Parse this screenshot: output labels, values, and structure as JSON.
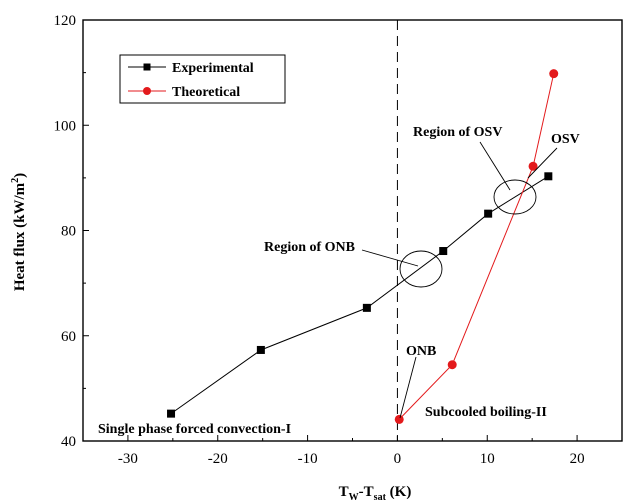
{
  "chart_data": {
    "type": "line",
    "xlabel": "T",
    "xlabel_sub1": "W",
    "xlabel_mid": "-T",
    "xlabel_sub2": "sat",
    "xlabel_unit": " (K)",
    "ylabel": "Heat flux (kW/m",
    "ylabel_sup": "2",
    "ylabel_end": ")",
    "xlim": [
      -35,
      25
    ],
    "ylim": [
      40,
      120
    ],
    "xticks": [
      -30,
      -20,
      -10,
      0,
      10,
      20
    ],
    "yticks": [
      40,
      60,
      80,
      100,
      120
    ],
    "grid": false,
    "legend_position": "top-left",
    "series": [
      {
        "name": "Experimental",
        "marker": "square",
        "color": "#000000",
        "x": [
          -25.2,
          -15.2,
          -3.4,
          5.1,
          10.1,
          16.8
        ],
        "y": [
          45.2,
          57.3,
          65.3,
          76.1,
          83.2,
          90.3
        ]
      },
      {
        "name": "Theoretical",
        "marker": "circle",
        "color": "#e31a1c",
        "x": [
          0.2,
          6.1,
          15.1,
          17.4
        ],
        "y": [
          44.1,
          54.5,
          92.2,
          109.8
        ]
      }
    ],
    "annotations": {
      "onb_region": "Region of ONB",
      "osv_region": "Region of OSV",
      "osv": "OSV",
      "onb": "ONB",
      "single_phase": "Single phase forced convection-I",
      "subcooled": "Subcooled boiling-II"
    }
  }
}
